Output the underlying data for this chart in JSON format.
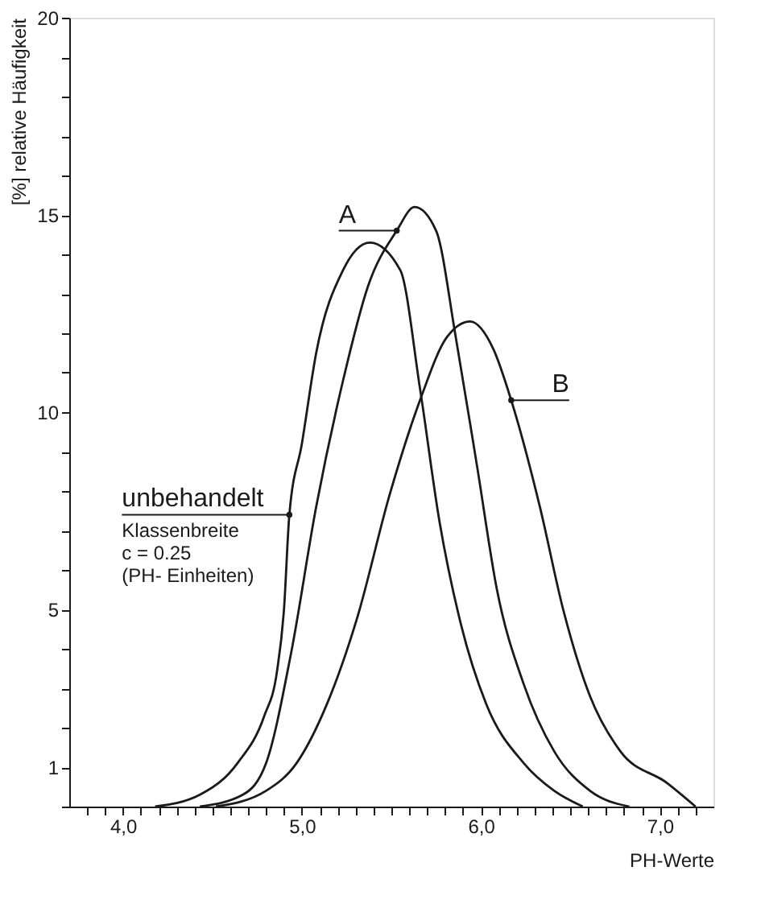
{
  "chart_data": {
    "type": "line",
    "ylabel": "[%]  relative Häufigkeit",
    "xlabel": "PH-Werte",
    "xlim": [
      3.7,
      7.3
    ],
    "xticks": [
      {
        "value": 3.8,
        "label": null
      },
      {
        "value": 3.9,
        "label": null
      },
      {
        "value": 4,
        "label": "4,0"
      },
      {
        "value": 4.1,
        "label": null
      },
      {
        "value": 4.2,
        "label": null
      },
      {
        "value": 4.3,
        "label": null
      },
      {
        "value": 4.4,
        "label": null
      },
      {
        "value": 4.5,
        "label": null
      },
      {
        "value": 4.6,
        "label": null
      },
      {
        "value": 4.7,
        "label": null
      },
      {
        "value": 4.8,
        "label": null
      },
      {
        "value": 4.9,
        "label": null
      },
      {
        "value": 5,
        "label": "5,0"
      },
      {
        "value": 5.1,
        "label": null
      },
      {
        "value": 5.2,
        "label": null
      },
      {
        "value": 5.3,
        "label": null
      },
      {
        "value": 5.4,
        "label": null
      },
      {
        "value": 5.5,
        "label": null
      },
      {
        "value": 5.6,
        "label": null
      },
      {
        "value": 5.7,
        "label": null
      },
      {
        "value": 5.8,
        "label": null
      },
      {
        "value": 5.9,
        "label": null
      },
      {
        "value": 6,
        "label": "6,0"
      },
      {
        "value": 6.1,
        "label": null
      },
      {
        "value": 6.2,
        "label": null
      },
      {
        "value": 6.3,
        "label": null
      },
      {
        "value": 6.4,
        "label": null
      },
      {
        "value": 6.5,
        "label": null
      },
      {
        "value": 6.6,
        "label": null
      },
      {
        "value": 6.7,
        "label": null
      },
      {
        "value": 6.8,
        "label": null
      },
      {
        "value": 6.9,
        "label": null
      },
      {
        "value": 7,
        "label": "7,0"
      },
      {
        "value": 7.1,
        "label": null
      },
      {
        "value": 7.2,
        "label": null
      }
    ],
    "ylim": [
      0,
      20
    ],
    "yticks": [
      {
        "value": 0,
        "label": null
      },
      1,
      {
        "value": 2,
        "label": null
      },
      {
        "value": 3,
        "label": null
      },
      {
        "value": 4,
        "label": null
      },
      5,
      {
        "value": 6,
        "label": null
      },
      {
        "value": 7,
        "label": null
      },
      {
        "value": 8,
        "label": null
      },
      {
        "value": 9,
        "label": null
      },
      10,
      {
        "value": 11,
        "label": null
      },
      {
        "value": 12,
        "label": null
      },
      {
        "value": 13,
        "label": null
      },
      {
        "value": 14,
        "label": null
      },
      15,
      {
        "value": 16,
        "label": null
      },
      {
        "value": 17,
        "label": null
      },
      {
        "value": 18,
        "label": null
      },
      {
        "value": 19,
        "label": null
      },
      20
    ],
    "grid": false,
    "legend": false,
    "line_style": "solid",
    "series": [
      {
        "color": "#1a1a1a",
        "x": [
          4.18,
          4.43,
          4.64,
          4.79,
          4.86,
          4.9,
          4.93,
          5.0,
          5.08,
          5.23,
          5.38,
          5.55,
          5.66,
          5.77,
          5.89,
          6.03,
          6.24,
          6.41,
          6.57
        ],
        "values": [
          0,
          0.3,
          1.1,
          2.3,
          3.4,
          5.0,
          7.4,
          9.2,
          11.5,
          13.6,
          14.3,
          13.6,
          10.6,
          7.2,
          4.6,
          2.6,
          1.1,
          0.4,
          0
        ]
      },
      {
        "color": "#1a1a1a",
        "x": [
          4.43,
          4.67,
          4.8,
          4.94,
          5.08,
          5.23,
          5.37,
          5.53,
          5.63,
          5.75,
          5.86,
          5.98,
          6.09,
          6.24,
          6.41,
          6.61,
          6.83
        ],
        "values": [
          0,
          0.3,
          1.1,
          3.9,
          7.6,
          10.8,
          13.2,
          14.6,
          15.2,
          14.6,
          11.9,
          8.6,
          5.5,
          3.1,
          1.4,
          0.4,
          0
        ]
      },
      {
        "color": "#1a1a1a",
        "x": [
          4.52,
          4.8,
          4.97,
          5.14,
          5.31,
          5.49,
          5.66,
          5.81,
          5.94,
          6.07,
          6.17,
          6.33,
          6.46,
          6.61,
          6.78,
          7.04,
          7.2
        ],
        "values": [
          0,
          0.4,
          1.1,
          2.6,
          4.8,
          7.9,
          10.3,
          11.9,
          12.3,
          11.6,
          10.3,
          7.6,
          5.0,
          2.8,
          1.4,
          0.6,
          0
        ]
      }
    ],
    "annotations": [
      {
        "text": "unbehandelt",
        "x": 4.93,
        "y": 7.4
      },
      {
        "text": "A",
        "x": 5.53,
        "y": 14.6
      },
      {
        "text": "B",
        "x": 6.17,
        "y": 10.3
      },
      "Klassenbreite",
      "c = 0.25",
      "(PH- Einheiten)"
    ]
  }
}
